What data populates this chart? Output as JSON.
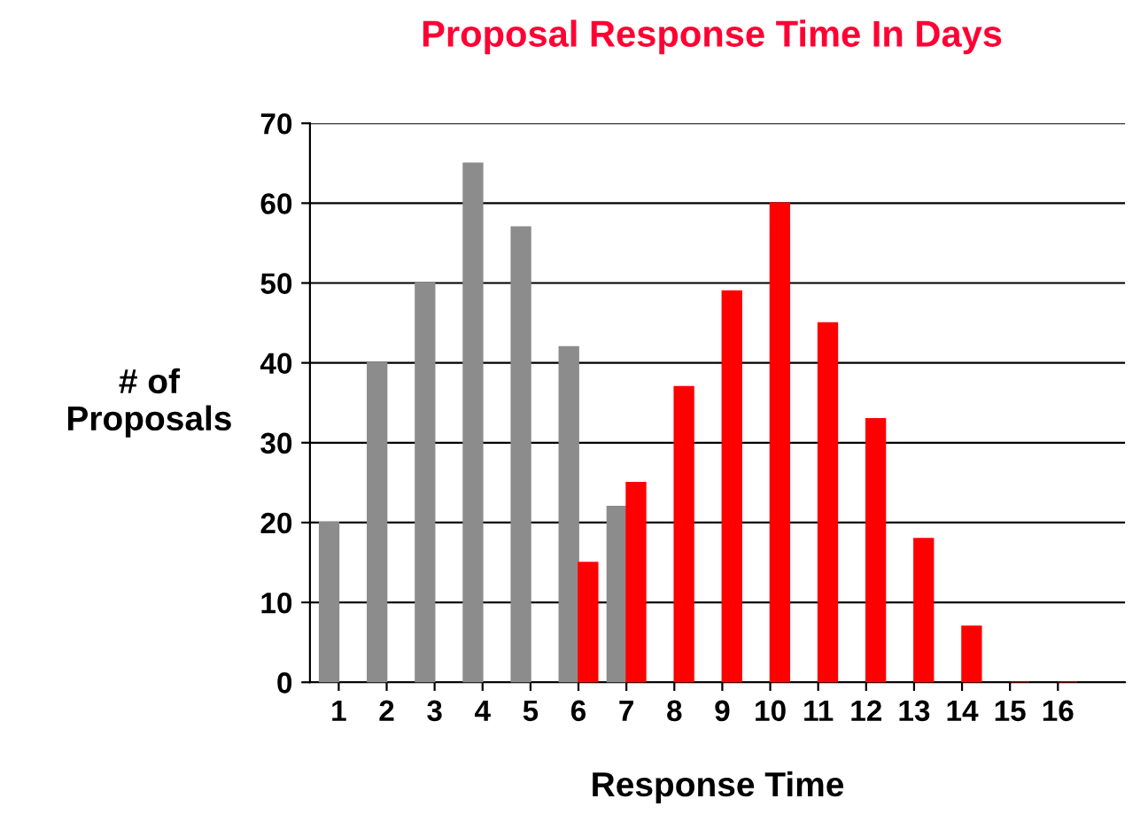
{
  "chart_data": {
    "type": "bar",
    "title": "Proposal Response Time In Days",
    "xlabel": "Response Time",
    "ylabel": "# of\nProposals",
    "categories": [
      "1",
      "2",
      "3",
      "4",
      "5",
      "6",
      "7",
      "8",
      "9",
      "10",
      "11",
      "12",
      "13",
      "14",
      "15",
      "16"
    ],
    "series": [
      {
        "color": "#8c8c8c",
        "values": [
          20,
          40,
          50,
          65,
          57,
          42,
          22,
          null,
          null,
          null,
          null,
          null,
          null,
          null,
          null,
          null
        ]
      },
      {
        "color": "#ff0000",
        "values": [
          null,
          null,
          null,
          null,
          null,
          15,
          25,
          37,
          49,
          60,
          45,
          33,
          18,
          7,
          0,
          0
        ]
      }
    ],
    "ylim": [
      0,
      70
    ],
    "yticks": [
      0,
      10,
      20,
      30,
      40,
      50,
      60,
      70
    ],
    "grid": "y",
    "legend": false
  }
}
